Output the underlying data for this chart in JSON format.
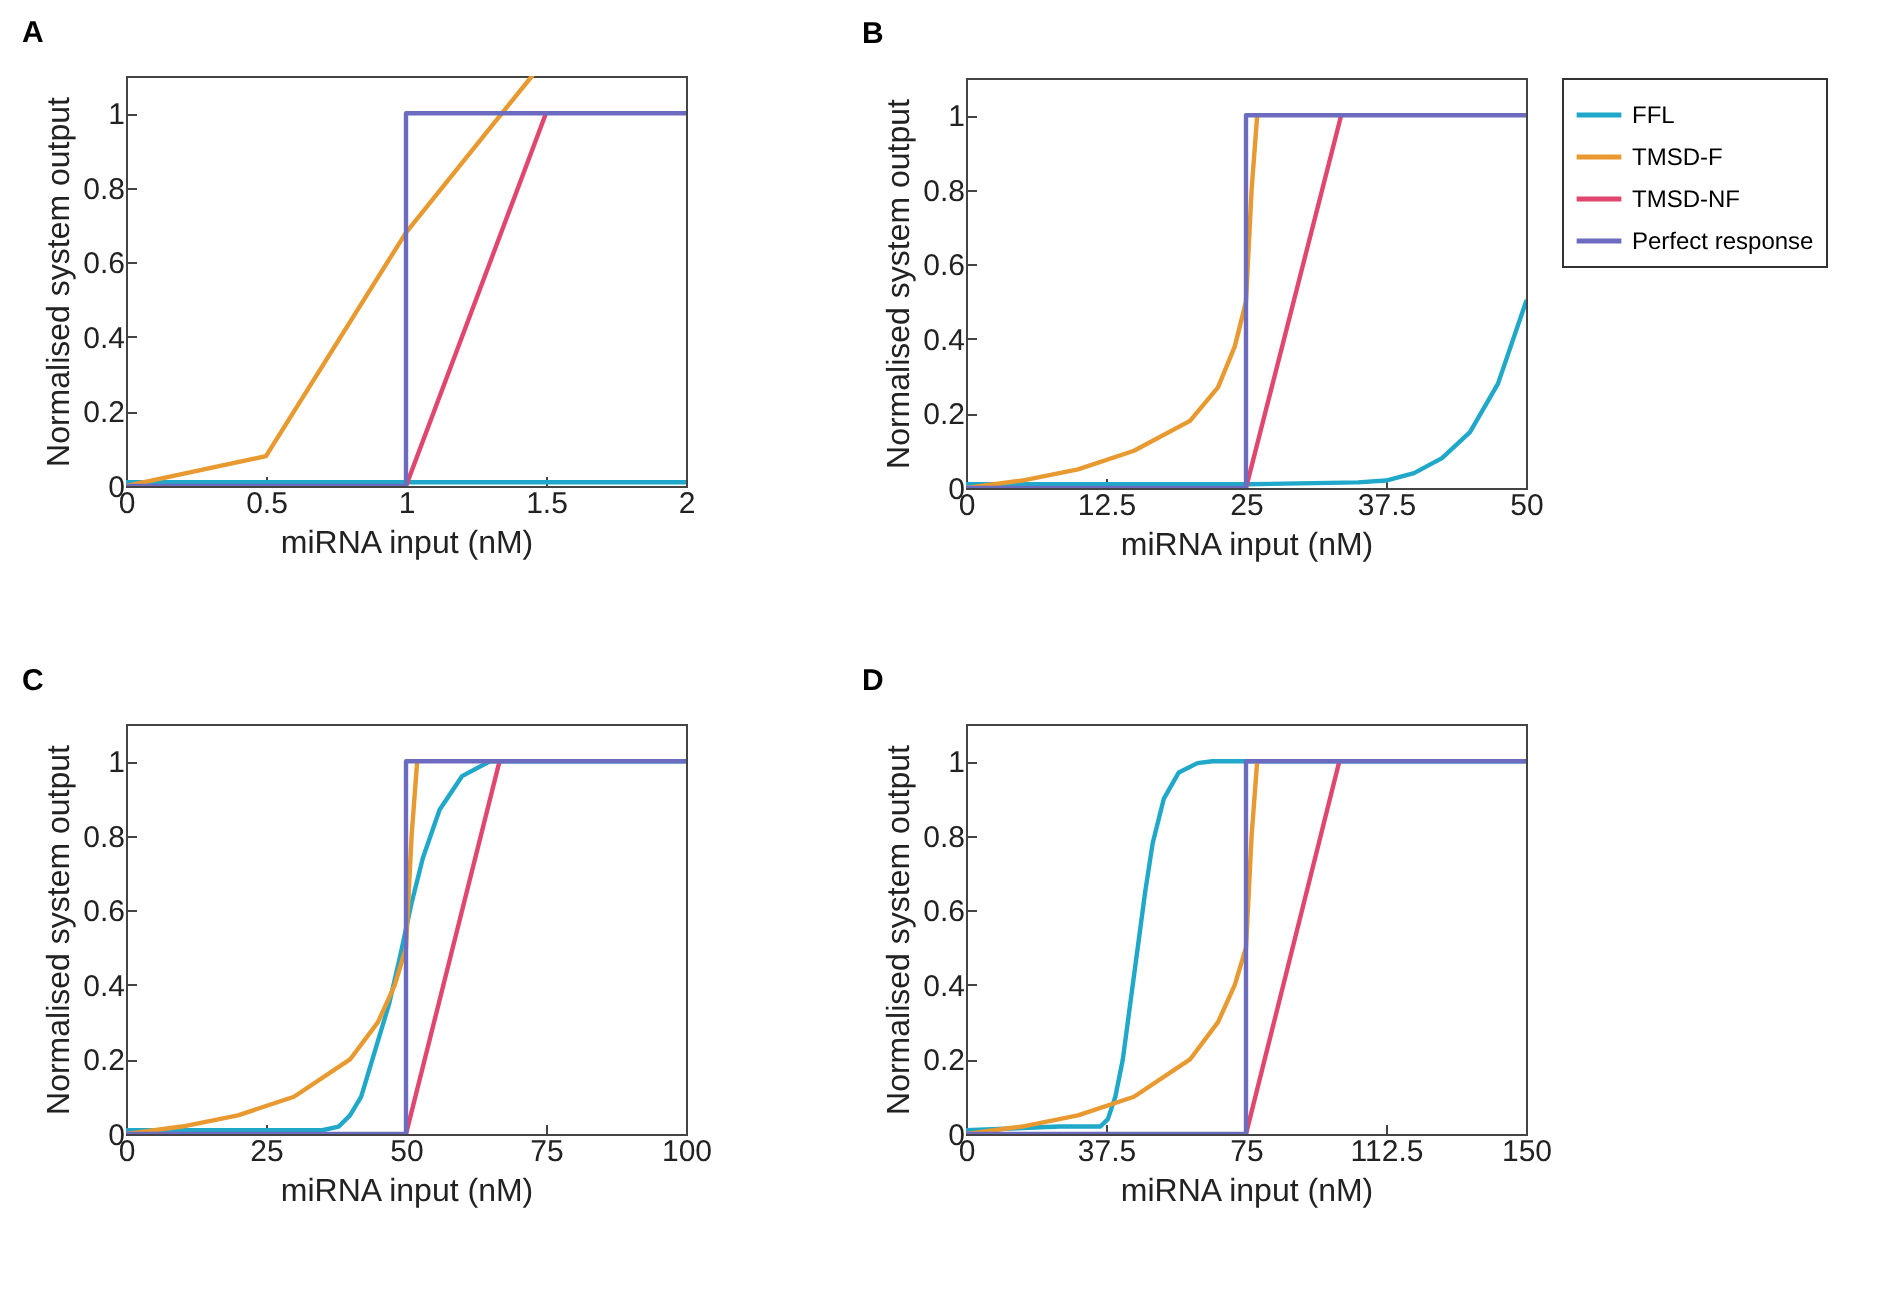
{
  "chart_data": [
    {
      "type": "line",
      "title": "A",
      "xlabel": "miRNA input (nM)",
      "ylabel": "Normalised system output",
      "xlim": [
        0,
        2
      ],
      "xticks": [
        0,
        0.5,
        1,
        1.5,
        2
      ],
      "ylim": [
        0,
        1.1
      ],
      "yticks": [
        0,
        0.2,
        0.4,
        0.6,
        0.8,
        1
      ],
      "legend": false,
      "series": [
        {
          "color": "#1fa8c9",
          "x": [
            0,
            2
          ],
          "values": [
            0.01,
            0.01
          ]
        },
        {
          "color": "#e89a30",
          "x": [
            0,
            0.5,
            1,
            1.45
          ],
          "values": [
            0,
            0.08,
            0.68,
            1.1
          ]
        },
        {
          "color": "#e0466e",
          "x": [
            1,
            1.5
          ],
          "values": [
            0,
            1
          ]
        },
        {
          "color": "#6b6bc0",
          "x": [
            0,
            1,
            1,
            2
          ],
          "values": [
            0,
            0,
            1,
            1
          ]
        }
      ]
    },
    {
      "type": "line",
      "title": "B",
      "xlabel": "miRNA input (nM)",
      "ylabel": "Normalised system output",
      "xlim": [
        0,
        50
      ],
      "xticks": [
        0,
        12.5,
        25,
        37.5,
        50
      ],
      "ylim": [
        0,
        1.1
      ],
      "yticks": [
        0,
        0.2,
        0.4,
        0.6,
        0.8,
        1
      ],
      "legend": "right",
      "series": [
        {
          "name": "FFL",
          "color": "#1fa8c9",
          "x": [
            0,
            25,
            35,
            37.5,
            40,
            42.5,
            45,
            47.5,
            50
          ],
          "values": [
            0.01,
            0.01,
            0.015,
            0.02,
            0.04,
            0.08,
            0.15,
            0.28,
            0.5
          ]
        },
        {
          "name": "TMSD-F",
          "color": "#e89a30",
          "x": [
            0,
            5,
            10,
            15,
            20,
            22.5,
            24,
            25,
            25.5,
            26
          ],
          "values": [
            0,
            0.02,
            0.05,
            0.1,
            0.18,
            0.27,
            0.38,
            0.5,
            0.8,
            1
          ]
        },
        {
          "name": "TMSD-NF",
          "color": "#e0466e",
          "x": [
            25,
            33.5
          ],
          "values": [
            0,
            1
          ]
        },
        {
          "name": "Perfect response",
          "color": "#6b6bc0",
          "x": [
            0,
            25,
            25,
            50
          ],
          "values": [
            0,
            0,
            1,
            1
          ]
        }
      ]
    },
    {
      "type": "line",
      "title": "C",
      "xlabel": "miRNA input (nM)",
      "ylabel": "Normalised system output",
      "xlim": [
        0,
        100
      ],
      "xticks": [
        0,
        25,
        50,
        75,
        100
      ],
      "ylim": [
        0,
        1.1
      ],
      "yticks": [
        0,
        0.2,
        0.4,
        0.6,
        0.8,
        1
      ],
      "legend": false,
      "series": [
        {
          "color": "#1fa8c9",
          "x": [
            0,
            35,
            38,
            40,
            42,
            44,
            47,
            49,
            51,
            53,
            56,
            60,
            65,
            100
          ],
          "values": [
            0.01,
            0.01,
            0.02,
            0.05,
            0.1,
            0.2,
            0.35,
            0.48,
            0.62,
            0.74,
            0.87,
            0.96,
            1,
            1
          ]
        },
        {
          "color": "#e89a30",
          "x": [
            0,
            10,
            20,
            30,
            40,
            45,
            48,
            50,
            51,
            52
          ],
          "values": [
            0,
            0.02,
            0.05,
            0.1,
            0.2,
            0.3,
            0.4,
            0.5,
            0.8,
            1
          ]
        },
        {
          "color": "#e0466e",
          "x": [
            50,
            66.7
          ],
          "values": [
            0,
            1
          ]
        },
        {
          "color": "#6b6bc0",
          "x": [
            0,
            50,
            50,
            100
          ],
          "values": [
            0,
            0,
            1,
            1
          ]
        }
      ]
    },
    {
      "type": "line",
      "title": "D",
      "xlabel": "miRNA input (nM)",
      "ylabel": "Normalised system output",
      "xlim": [
        0,
        150
      ],
      "xticks": [
        0,
        37.5,
        75,
        112.5,
        150
      ],
      "ylim": [
        0,
        1.1
      ],
      "yticks": [
        0,
        0.2,
        0.4,
        0.6,
        0.8,
        1
      ],
      "legend": false,
      "series": [
        {
          "color": "#1fa8c9",
          "x": [
            0,
            25,
            36,
            38,
            40,
            42,
            44,
            46,
            48,
            50,
            53,
            57,
            62,
            66,
            150
          ],
          "values": [
            0.01,
            0.02,
            0.02,
            0.04,
            0.1,
            0.2,
            0.35,
            0.5,
            0.65,
            0.78,
            0.9,
            0.97,
            0.995,
            1,
            1
          ]
        },
        {
          "color": "#e89a30",
          "x": [
            0,
            15,
            30,
            45,
            60,
            67.5,
            72,
            75,
            76.5,
            78
          ],
          "values": [
            0,
            0.02,
            0.05,
            0.1,
            0.2,
            0.3,
            0.4,
            0.5,
            0.8,
            1
          ]
        },
        {
          "color": "#e0466e",
          "x": [
            75,
            100
          ],
          "values": [
            0,
            1
          ]
        },
        {
          "color": "#6b6bc0",
          "x": [
            0,
            75,
            75,
            150
          ],
          "values": [
            0,
            0,
            1,
            1
          ]
        }
      ]
    }
  ]
}
